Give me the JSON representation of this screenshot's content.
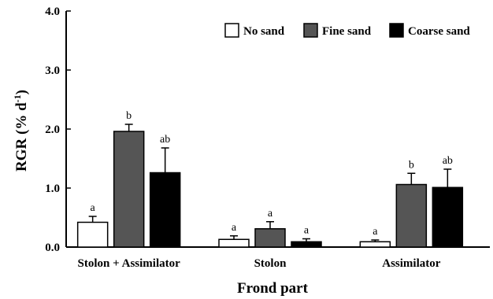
{
  "chart_data": {
    "type": "bar",
    "xlabel": "Frond part",
    "ylabel_main": "RGR (% d",
    "ylabel_sup": "-1",
    "ylabel_close": ")",
    "ylim": [
      0,
      4
    ],
    "yticks": [
      "0.0",
      "1.0",
      "2.0",
      "3.0",
      "4.0"
    ],
    "ytick_values": [
      0,
      1,
      2,
      3,
      4
    ],
    "categories": [
      "Stolon + Assimilator",
      "Stolon",
      "Assimilator"
    ],
    "legend_position": "top-right",
    "series": [
      {
        "name": "No sand",
        "color": "#ffffff",
        "values": [
          0.42,
          0.13,
          0.09
        ],
        "errors": [
          0.1,
          0.06,
          0.03
        ],
        "labels": [
          "a",
          "a",
          "a"
        ]
      },
      {
        "name": "Fine sand",
        "color": "#555555",
        "values": [
          1.96,
          0.31,
          1.06
        ],
        "errors": [
          0.12,
          0.12,
          0.19
        ],
        "labels": [
          "b",
          "a",
          "b"
        ]
      },
      {
        "name": "Coarse sand",
        "color": "#000000",
        "values": [
          1.26,
          0.09,
          1.01
        ],
        "errors": [
          0.42,
          0.05,
          0.31
        ],
        "labels": [
          "ab",
          "a",
          "ab"
        ]
      }
    ]
  }
}
